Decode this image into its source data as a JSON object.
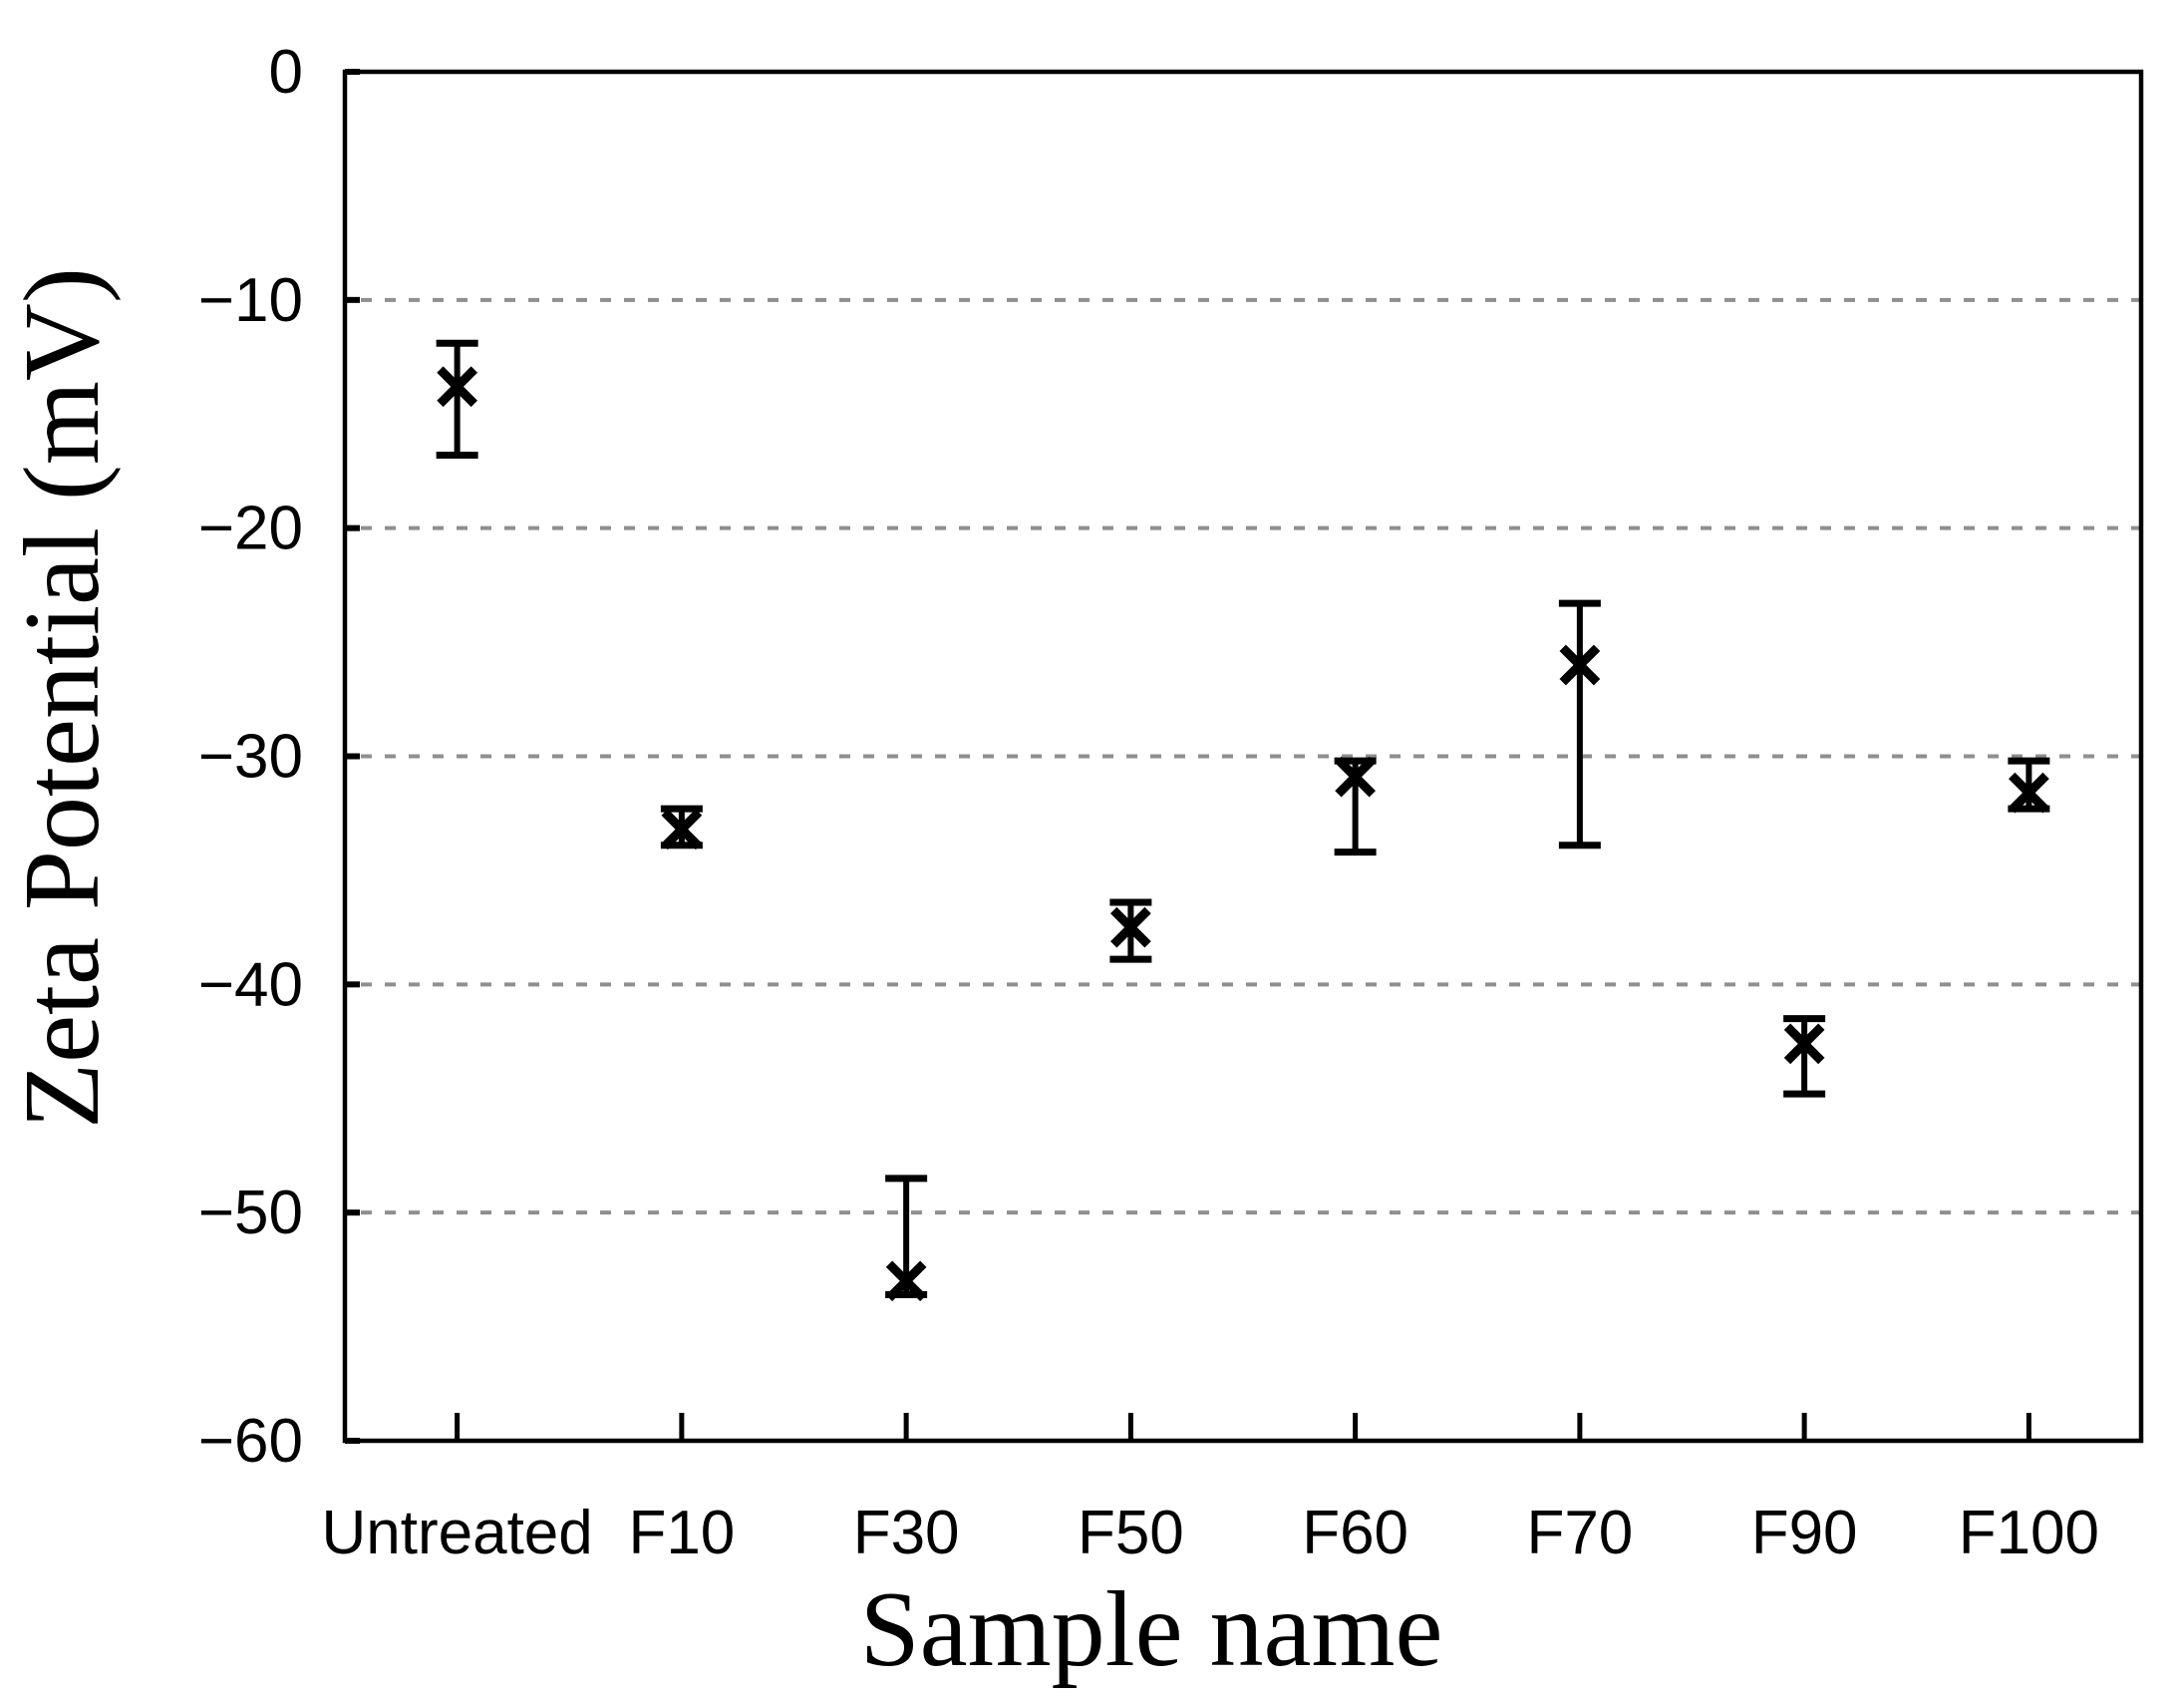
{
  "figure": {
    "background_color": "#ffffff",
    "axis_color": "#000000",
    "grid_color": "#8f8f8f",
    "marker_color": "#000000"
  },
  "chart_data": {
    "type": "scatter",
    "title": "",
    "xlabel": "Sample name",
    "ylabel": "Zeta Potential (mV)",
    "categories": [
      "Untreated",
      "F10",
      "F30",
      "F50",
      "F60",
      "F70",
      "F90",
      "F100"
    ],
    "series": [
      {
        "name": "Zeta potential",
        "marker": "x",
        "values": [
          -13.8,
          -33.2,
          -53.0,
          -37.5,
          -30.9,
          -26.0,
          -42.6,
          -31.6
        ],
        "error_bar_top": [
          -11.9,
          -32.3,
          -48.5,
          -36.4,
          -30.2,
          -23.3,
          -41.5,
          -30.2
        ],
        "error_bar_bottom": [
          -16.8,
          -33.9,
          -53.6,
          -38.9,
          -34.2,
          -33.9,
          -44.8,
          -32.3
        ]
      }
    ],
    "ylim": [
      -60,
      0
    ],
    "yticks": [
      0,
      -10,
      -20,
      -30,
      -40,
      -50,
      -60
    ],
    "ytick_labels": [
      "0",
      "−10",
      "−20",
      "−30",
      "−40",
      "−50",
      "−60"
    ],
    "gridline_values": [
      -10,
      -20,
      -30,
      -40,
      -50
    ],
    "grid_style": "horizontal-dashed",
    "legend": "none"
  }
}
